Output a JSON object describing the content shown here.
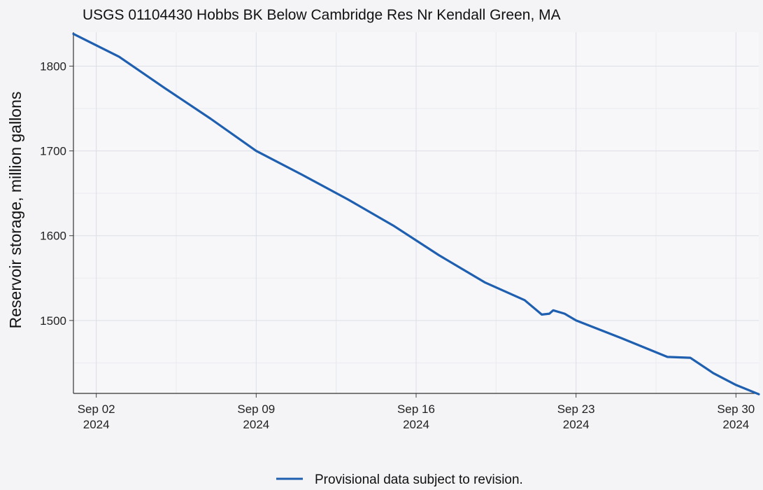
{
  "chart_data": {
    "type": "line",
    "title": "USGS 01104430 Hobbs BK Below Cambridge Res Nr Kendall Green, MA",
    "ylabel": "Reservoir storage, million gallons",
    "xlabel": "",
    "xlim": [
      "2024-09-01",
      "2024-10-01"
    ],
    "ylim": [
      1414,
      1840
    ],
    "x_ticks": [
      {
        "date": "2024-09-02",
        "line1": "Sep 02",
        "line2": "2024"
      },
      {
        "date": "2024-09-09",
        "line1": "Sep 09",
        "line2": "2024"
      },
      {
        "date": "2024-09-16",
        "line1": "Sep 16",
        "line2": "2024"
      },
      {
        "date": "2024-09-23",
        "line1": "Sep 23",
        "line2": "2024"
      },
      {
        "date": "2024-09-30",
        "line1": "Sep 30",
        "line2": "2024"
      }
    ],
    "y_ticks": [
      1500,
      1600,
      1700,
      1800
    ],
    "grid": true,
    "legend_position": "bottom",
    "series": [
      {
        "name": "Provisional data subject to revision.",
        "color": "#1f5fb0",
        "points": [
          [
            "2024-09-01T00:00",
            1838
          ],
          [
            "2024-09-03T00:00",
            1811
          ],
          [
            "2024-09-05T00:00",
            1774
          ],
          [
            "2024-09-07T00:00",
            1738
          ],
          [
            "2024-09-09T00:00",
            1700
          ],
          [
            "2024-09-11T00:00",
            1672
          ],
          [
            "2024-09-13T00:00",
            1643
          ],
          [
            "2024-09-15T00:00",
            1612
          ],
          [
            "2024-09-17T00:00",
            1577
          ],
          [
            "2024-09-19T00:00",
            1545
          ],
          [
            "2024-09-20T18:00",
            1524
          ],
          [
            "2024-09-21T12:00",
            1507
          ],
          [
            "2024-09-21T20:00",
            1508
          ],
          [
            "2024-09-22T00:00",
            1512
          ],
          [
            "2024-09-22T12:00",
            1508
          ],
          [
            "2024-09-23T00:00",
            1500
          ],
          [
            "2024-09-25T00:00",
            1479
          ],
          [
            "2024-09-27T00:00",
            1457
          ],
          [
            "2024-09-28T00:00",
            1456
          ],
          [
            "2024-09-29T00:00",
            1438
          ],
          [
            "2024-09-30T00:00",
            1424
          ],
          [
            "2024-10-01T00:00",
            1413
          ]
        ]
      }
    ]
  }
}
